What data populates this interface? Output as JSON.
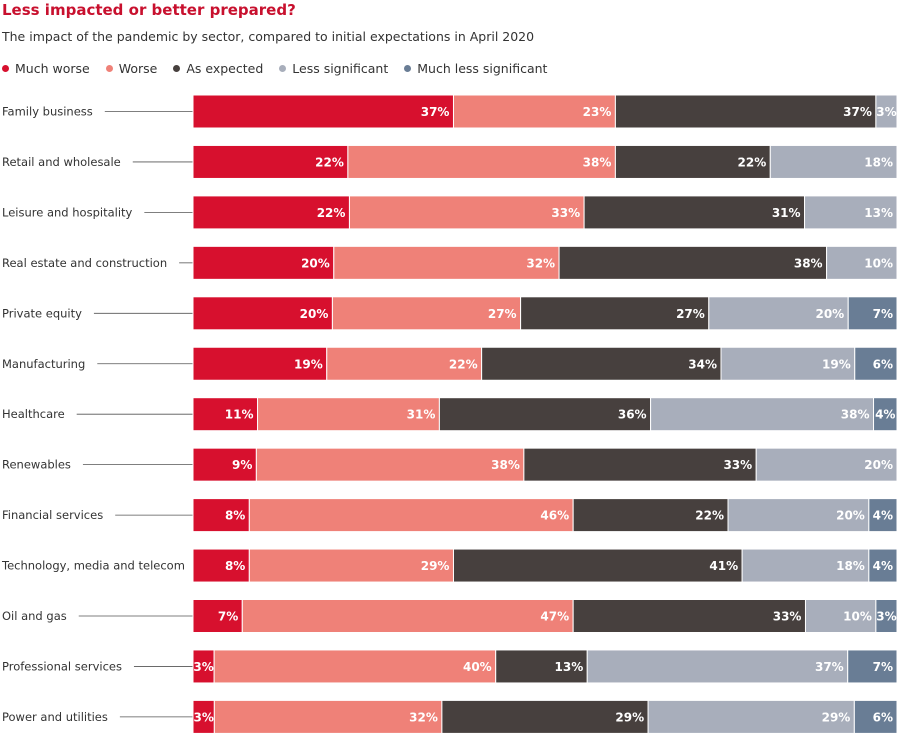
{
  "chart_data": {
    "type": "bar",
    "orientation": "horizontal",
    "stacked": true,
    "title": "Less impacted or better prepared?",
    "subtitle": "The impact of the pandemic by sector, compared to initial expectations in April 2020",
    "legend_position": "top-left",
    "grid": false,
    "categories": [
      "Family business",
      "Retail and wholesale",
      "Leisure and hospitality",
      "Real estate and construction",
      "Private equity",
      "Manufacturing",
      "Healthcare",
      "Renewables",
      "Financial services",
      "Technology, media and telecom",
      "Oil and gas",
      "Professional services",
      "Power and utilities"
    ],
    "series": [
      {
        "name": "Much worse",
        "color": "#d7102e",
        "values": [
          37,
          22,
          22,
          20,
          20,
          19,
          11,
          9,
          8,
          8,
          7,
          3,
          3
        ]
      },
      {
        "name": "Worse",
        "color": "#ef8178",
        "values": [
          23,
          38,
          33,
          32,
          27,
          22,
          31,
          38,
          46,
          29,
          47,
          40,
          32
        ]
      },
      {
        "name": "As expected",
        "color": "#47403e",
        "values": [
          37,
          22,
          31,
          38,
          27,
          34,
          36,
          33,
          22,
          41,
          33,
          13,
          29
        ]
      },
      {
        "name": "Less significant",
        "color": "#a8aebb",
        "values": [
          3,
          18,
          13,
          10,
          20,
          19,
          38,
          20,
          20,
          18,
          10,
          37,
          29
        ]
      },
      {
        "name": "Much less significant",
        "color": "#697d95",
        "values": [
          0,
          0,
          0,
          0,
          7,
          6,
          4,
          0,
          4,
          4,
          3,
          7,
          6
        ]
      }
    ],
    "value_format": "{v}%"
  }
}
